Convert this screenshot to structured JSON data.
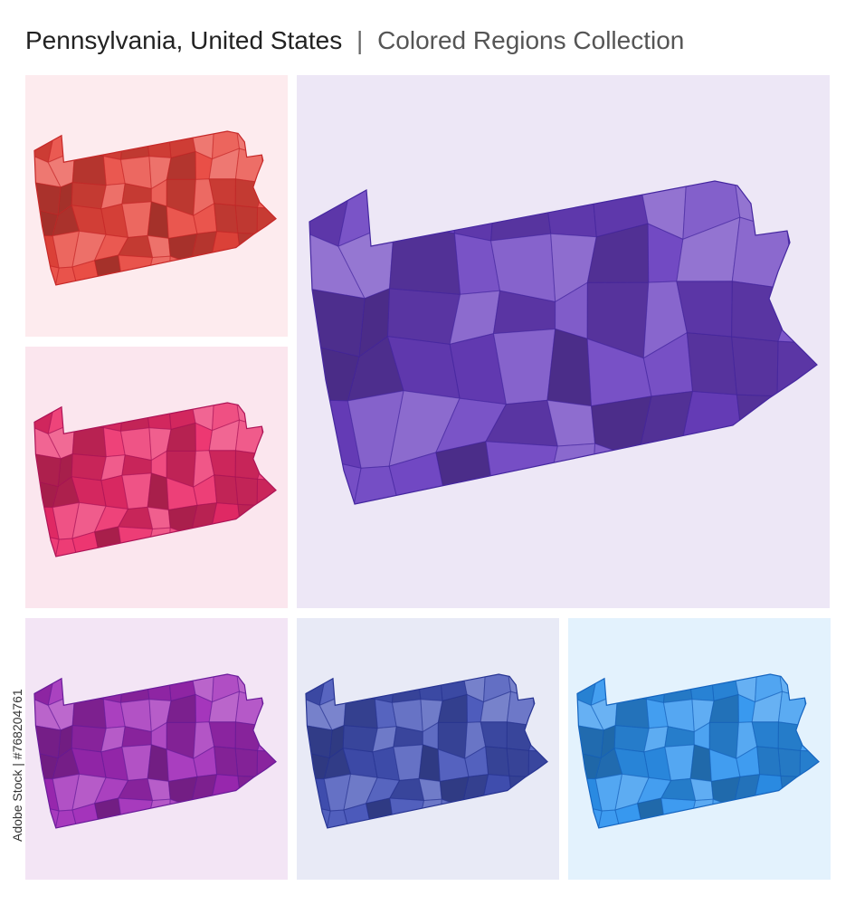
{
  "header": {
    "title": "Pennsylvania, United States",
    "separator": "|",
    "subtitle": "Colored Regions Collection"
  },
  "watermark": {
    "id": "Adobe Stock | #768204761"
  }
}
